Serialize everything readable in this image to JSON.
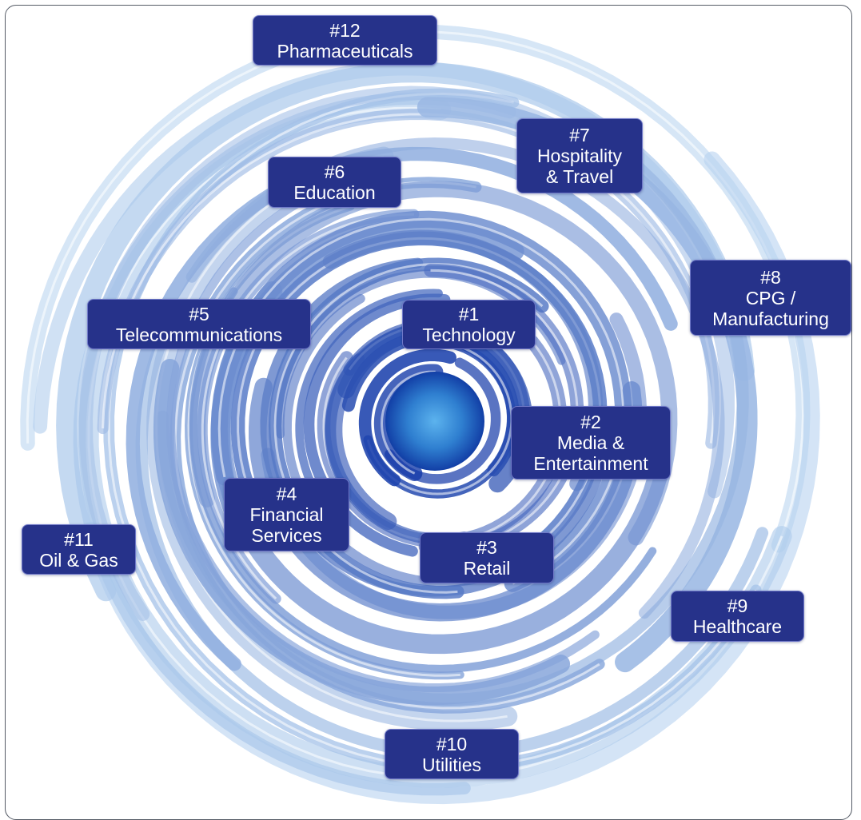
{
  "industries": [
    {
      "rank": "#1",
      "name": "Technology"
    },
    {
      "rank": "#2",
      "name": "Media &",
      "name2": "Entertainment"
    },
    {
      "rank": "#3",
      "name": "Retail"
    },
    {
      "rank": "#4",
      "name": "Financial",
      "name2": "Services"
    },
    {
      "rank": "#5",
      "name": "Telecommunications"
    },
    {
      "rank": "#6",
      "name": "Education"
    },
    {
      "rank": "#7",
      "name": "Hospitality",
      "name2": "& Travel"
    },
    {
      "rank": "#8",
      "name": "CPG /",
      "name2": "Manufacturing"
    },
    {
      "rank": "#9",
      "name": "Healthcare"
    },
    {
      "rank": "#10",
      "name": "Utilities"
    },
    {
      "rank": "#11",
      "name": "Oil & Gas"
    },
    {
      "rank": "#12",
      "name": "Pharmaceuticals"
    }
  ],
  "colors": {
    "label_bg": "#26328a",
    "label_border": "#6f78c8",
    "swirl_center": "#4aa3e8",
    "swirl_dark": "#1238a8",
    "swirl_light": "#b8d4f0"
  }
}
